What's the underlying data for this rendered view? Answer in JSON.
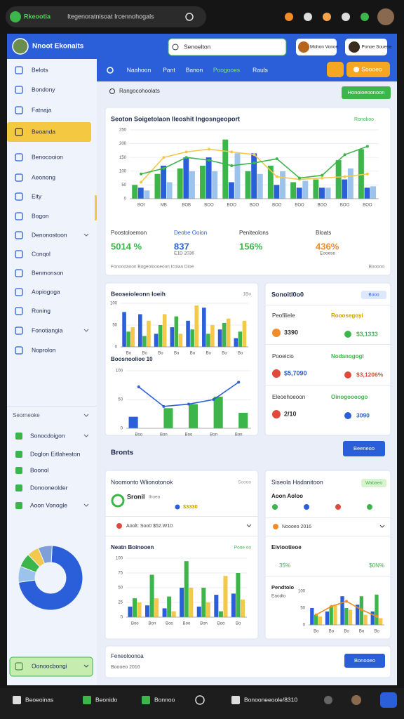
{
  "browser": {
    "tab": "Rkeootia",
    "url": "Itegenoratnisoat Ircennohogals"
  },
  "sidebar": {
    "brand": "Nnoot Ekonaits",
    "active": 3,
    "items": [
      "Belots",
      "Bondony",
      "Fatnaja",
      "Beoanda",
      "Benocooion",
      "Aeonong",
      "Eity",
      "Bogon",
      "Denonostoon",
      "Conqol",
      "Benmonson",
      "Aopiogoga",
      "Roning",
      "Fonotiangia",
      "Noprolon"
    ],
    "section": "Seorneoke",
    "section_items": [
      "Sonocdoigon",
      "Doglon Eitlaheston",
      "Boonol",
      "Donooneolder",
      "Aoon Vonogle"
    ],
    "footer": "Oonoocbongi"
  },
  "header": {
    "search": "Senoelton",
    "nav": [
      "Naahoon",
      "Pant",
      "Banon",
      "Poogooes",
      "Rauls"
    ],
    "nav_active": 3,
    "user1": "Mohon Vonoe",
    "user2": "Ponoe Souene",
    "action": "Soooeo"
  },
  "toolbar": {
    "search": "Rangocohoolats",
    "button": "Honoioeoonoon"
  },
  "overview": {
    "tag": "Ronokoo",
    "stats": [
      {
        "label": "Poostoloemon",
        "value": "5014 %"
      },
      {
        "label": "Deobe Ooion",
        "value": "837",
        "note": "E1D 2036"
      },
      {
        "label": "Peniteolons",
        "value": "156%"
      },
      {
        "label": "Bloats",
        "value": "436%",
        "note": "Eooese"
      }
    ],
    "footnote": "Fonoooaoon Bogeoloooeoon Icoiaa Dioe",
    "footnote_right": "Booooo"
  },
  "panel_left": {
    "title": "Beoseioleonn Ioeih",
    "tag": "1Bo"
  },
  "panel_right": {
    "title": "Sonoitl0o0",
    "tag": "Booo",
    "items": [
      {
        "label": "Peofiliele",
        "value": "3390",
        "label2": "Rooosegoyi",
        "value2": "$3,1333"
      },
      {
        "label": "Pooeicio",
        "value": "$5,7090",
        "label2": "Nodanogogi",
        "value2": "$3,1206%"
      },
      {
        "label": "Eleoehoeoon",
        "value": "2/10",
        "label2": "Oinogoooogo",
        "value2": "3090"
      }
    ]
  },
  "section_row": {
    "title": "Bronts",
    "button": "Beeneoo"
  },
  "panel_bl": {
    "title": "Noomonto Wlionotonok",
    "tag": "Soooo",
    "stat_label": "Sronil",
    "stat_sub": "Ilroeo",
    "stat_value": "$3330",
    "row": "Aoolt: Soo0  $52.W10",
    "chart_tag": "Pooe oo"
  },
  "panel_br": {
    "title": "Siseola Hadanitoon",
    "tag": "Wabaeo",
    "sub": "Aoon Aoloo",
    "row1": "Noooeo 2016",
    "row2_label": "Eiviootieoe",
    "row2_a": "35%",
    "row2_b": "$0N%",
    "chart_sub": "Eaodio"
  },
  "footer_panel": {
    "title": "Feneoloonoa",
    "sub": "Boooeo 2016",
    "button": "Bonooeo"
  },
  "taskbar": [
    "Beoeoinas",
    "Beonido",
    "Bonnoo",
    "Bonooneeoole/8310"
  ],
  "chart_data": [
    {
      "type": "bar",
      "title": "Seoton Soigetolaon Ileoshit Ingosngeoport",
      "categories": [
        "BOI",
        "MB",
        "BOB",
        "BOO",
        "BOO",
        "BOO",
        "BOO",
        "BOO",
        "BOO",
        "BOO",
        "BOO"
      ],
      "ylim": [
        0,
        250
      ],
      "yticks": [
        0,
        50,
        100,
        150,
        200,
        250
      ],
      "grid": true,
      "series": [
        {
          "color": "#3cb54a",
          "values": [
            50,
            90,
            110,
            120,
            215,
            100,
            120,
            60,
            70,
            140,
            180
          ]
        },
        {
          "color": "#2b5fd9",
          "values": [
            40,
            120,
            150,
            150,
            60,
            165,
            50,
            40,
            40,
            70,
            40
          ]
        },
        {
          "color": "#9cc3ec",
          "values": [
            30,
            60,
            100,
            100,
            165,
            90,
            100,
            65,
            40,
            110,
            45
          ]
        },
        {
          "type": "line",
          "color": "#f2c94c",
          "values": [
            60,
            150,
            170,
            180,
            170,
            160,
            80,
            70,
            75,
            80,
            90
          ]
        },
        {
          "type": "line",
          "color": "#3cb54a",
          "values": [
            90,
            110,
            150,
            140,
            120,
            130,
            145,
            75,
            85,
            160,
            190
          ]
        }
      ]
    },
    {
      "type": "bar",
      "categories": [
        "Bo",
        "Bo",
        "Bo",
        "Bo",
        "Bo",
        "Bo",
        "Bo",
        "Bo"
      ],
      "ylim": [
        0,
        100
      ],
      "yticks": [
        0,
        50,
        100
      ],
      "grid": true,
      "series": [
        {
          "color": "#2b5fd9",
          "values": [
            80,
            75,
            30,
            45,
            60,
            90,
            40,
            20
          ]
        },
        {
          "color": "#3cb54a",
          "values": [
            35,
            25,
            50,
            70,
            40,
            30,
            55,
            35
          ]
        },
        {
          "color": "#f2c94c",
          "values": [
            45,
            60,
            75,
            30,
            95,
            50,
            65,
            60
          ]
        }
      ]
    },
    {
      "type": "bar",
      "title": "Boosnoolioe 10",
      "categories": [
        "Boo",
        "Bon",
        "Boo",
        "Bon",
        "Bon"
      ],
      "ylim": [
        0,
        100
      ],
      "yticks": [
        0,
        50,
        100
      ],
      "grid": true,
      "series": [
        {
          "color": "#2b5fd9",
          "values": [
            20,
            null,
            null,
            null,
            null
          ]
        },
        {
          "color": "#3cb54a",
          "values": [
            null,
            35,
            42,
            55,
            27
          ]
        },
        {
          "type": "line",
          "color": "#2b5fd9",
          "values": [
            72,
            38,
            42,
            50,
            80
          ]
        }
      ]
    },
    {
      "type": "bar",
      "title": "Neatn Boinooen",
      "categories": [
        "Boo",
        "Bon",
        "Boo",
        "Boo",
        "Bon",
        "Boo",
        "Bo"
      ],
      "ylim": [
        0,
        100
      ],
      "yticks": [
        0,
        25,
        50,
        75,
        100
      ],
      "grid": true,
      "series": [
        {
          "color": "#2b5fd9",
          "values": [
            18,
            20,
            15,
            50,
            18,
            38,
            40
          ]
        },
        {
          "color": "#3cb54a",
          "values": [
            32,
            72,
            35,
            95,
            50,
            10,
            75
          ]
        },
        {
          "color": "#f2c94c",
          "values": [
            25,
            32,
            10,
            50,
            25,
            70,
            30
          ]
        }
      ]
    },
    {
      "type": "bar",
      "title": "Pendtolo",
      "categories": [
        "Bo",
        "Bo",
        "Bo",
        "Bo",
        "Bo"
      ],
      "ylim": [
        0,
        100
      ],
      "yticks": [
        0,
        50,
        100
      ],
      "grid": false,
      "series": [
        {
          "color": "#2b5fd9",
          "values": [
            50,
            40,
            85,
            60,
            40
          ]
        },
        {
          "color": "#3cb54a",
          "values": [
            30,
            55,
            50,
            85,
            90
          ]
        },
        {
          "color": "#f2c94c",
          "values": [
            25,
            60,
            45,
            30,
            20
          ]
        },
        {
          "type": "line",
          "color": "#f28c28",
          "values": [
            30,
            55,
            70,
            45,
            25
          ]
        }
      ]
    },
    {
      "type": "pie",
      "values": [
        72,
        8,
        7,
        6,
        7
      ],
      "colors": [
        "#2b5fd9",
        "#9cc3ec",
        "#3cb54a",
        "#f2c94c",
        "#7f9fd8"
      ]
    }
  ]
}
